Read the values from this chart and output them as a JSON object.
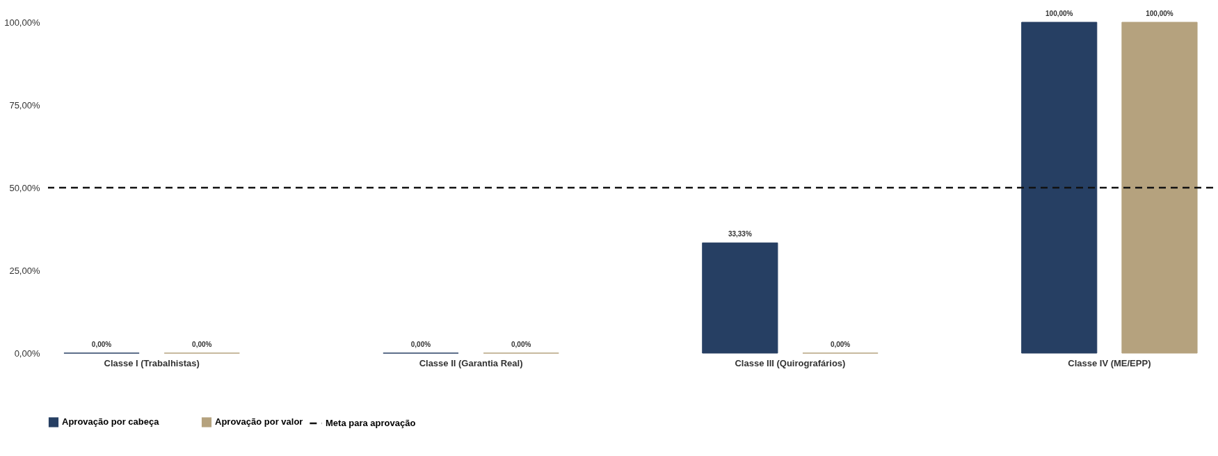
{
  "chart_data": {
    "type": "bar",
    "categories": [
      "Classe I (Trabalhistas)",
      "Classe II (Garantia Real)",
      "Classe III (Quirografários)",
      "Classe IV (ME/EPP)"
    ],
    "series": [
      {
        "name": "Aprovação por cabeça",
        "color": "#263f63",
        "values": [
          0,
          0,
          33.33,
          100
        ],
        "value_labels": [
          "0,00%",
          "0,00%",
          "33,33%",
          "100,00%"
        ]
      },
      {
        "name": "Aprovação por valor",
        "color": "#b5a27e",
        "values": [
          0,
          0,
          0,
          100
        ],
        "value_labels": [
          "0,00%",
          "0,00%",
          "0,00%",
          "100,00%"
        ]
      }
    ],
    "ylim": [
      0,
      100
    ],
    "yticks": [
      {
        "value": 0,
        "label": "0,00%"
      },
      {
        "value": 25,
        "label": "25,00%"
      },
      {
        "value": 50,
        "label": "50,00%"
      },
      {
        "value": 75,
        "label": "75,00%"
      },
      {
        "value": 100,
        "label": "100,00%"
      }
    ],
    "ref_lines": [
      {
        "axis": "y",
        "value": 50,
        "label": "Meta para aprovação",
        "color": "#111111",
        "line_style": "dashed"
      }
    ],
    "grid": false,
    "legend": "bottom"
  }
}
